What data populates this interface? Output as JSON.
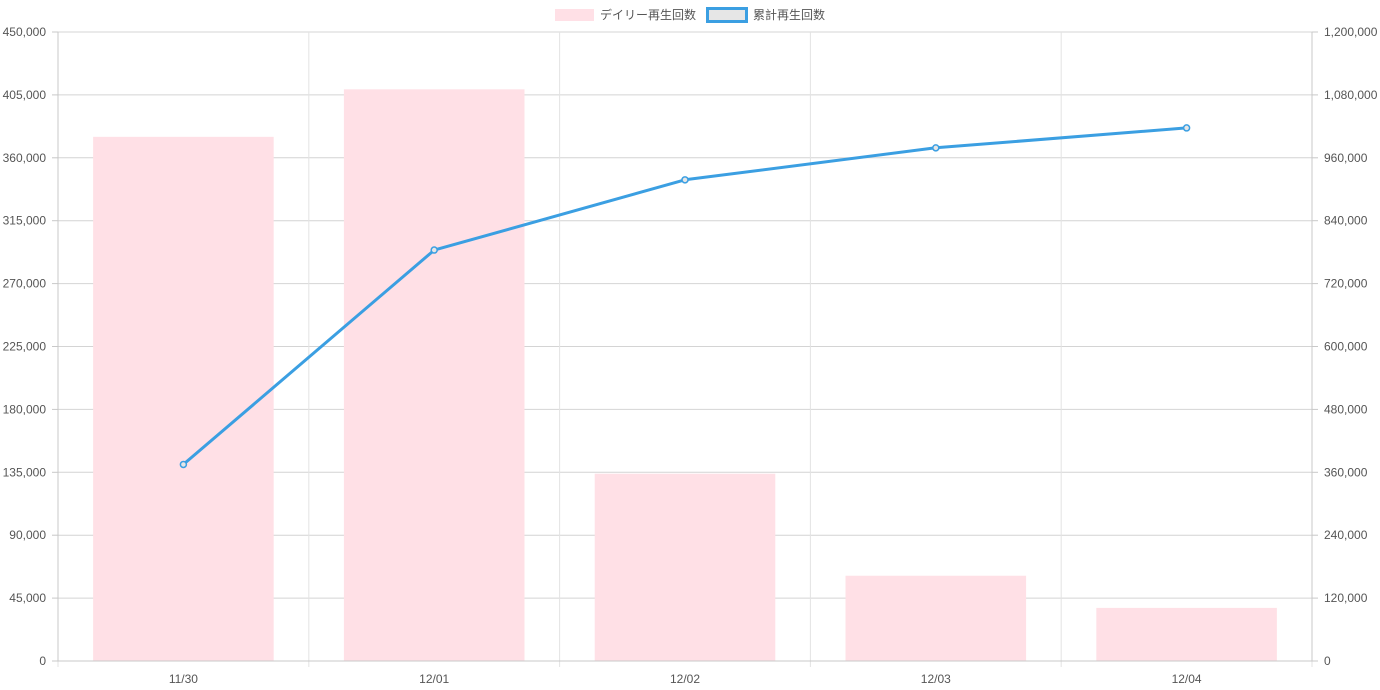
{
  "chart_data": {
    "type": "bar",
    "categories": [
      "11/30",
      "12/01",
      "12/02",
      "12/03",
      "12/04"
    ],
    "series": [
      {
        "name": "デイリー再生回数",
        "type": "bar",
        "axis": "left",
        "color": "#ffe0e6",
        "values": [
          375000,
          409000,
          134000,
          61000,
          38000
        ]
      },
      {
        "name": "累計再生回数",
        "type": "line",
        "axis": "right",
        "color": "#3b9fe2",
        "values": [
          375000,
          784000,
          918000,
          979000,
          1017000
        ]
      }
    ],
    "y_left": {
      "min": 0,
      "max": 450000,
      "ticks": [
        "0",
        "45,000",
        "90,000",
        "135,000",
        "180,000",
        "225,000",
        "270,000",
        "315,000",
        "360,000",
        "405,000",
        "450,000"
      ]
    },
    "y_right": {
      "min": 0,
      "max": 1200000,
      "ticks": [
        "0",
        "120,000",
        "240,000",
        "360,000",
        "480,000",
        "600,000",
        "720,000",
        "840,000",
        "960,000",
        "1,080,000",
        "1,200,000"
      ]
    },
    "grid": true,
    "legend_position": "top-center"
  }
}
